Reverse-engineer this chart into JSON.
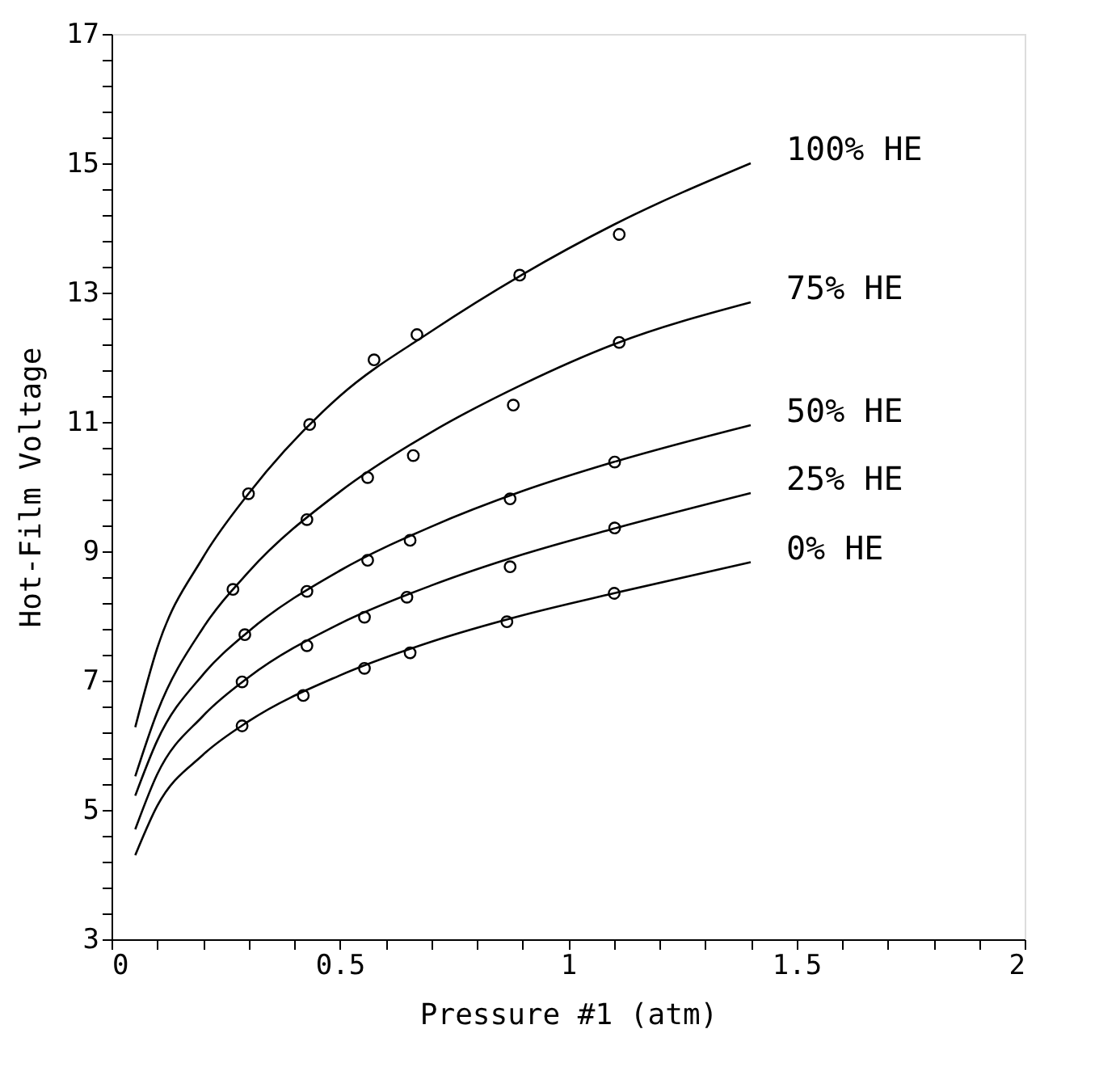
{
  "chart_data": {
    "type": "line",
    "xlabel": "Pressure #1 (atm)",
    "ylabel": "Hot-Film Voltage",
    "xlim": [
      0,
      2
    ],
    "ylim": [
      3,
      17
    ],
    "xticks": [
      0,
      {
        "value": 0.1,
        "label": null
      },
      {
        "value": 0.2,
        "label": null
      },
      {
        "value": 0.3,
        "label": null
      },
      {
        "value": 0.4,
        "label": null
      },
      0.5,
      {
        "value": 0.6,
        "label": null
      },
      {
        "value": 0.7,
        "label": null
      },
      {
        "value": 0.8,
        "label": null
      },
      {
        "value": 0.9,
        "label": null
      },
      1,
      {
        "value": 1.1,
        "label": null
      },
      {
        "value": 1.2,
        "label": null
      },
      {
        "value": 1.3,
        "label": null
      },
      {
        "value": 1.4,
        "label": null
      },
      1.5,
      {
        "value": 1.6,
        "label": null
      },
      {
        "value": 1.7,
        "label": null
      },
      {
        "value": 1.8,
        "label": null
      },
      {
        "value": 1.9,
        "label": null
      },
      2
    ],
    "yticks": [
      3,
      {
        "value": 3.4,
        "label": null
      },
      {
        "value": 3.8,
        "label": null
      },
      {
        "value": 4.2,
        "label": null
      },
      {
        "value": 4.6,
        "label": null
      },
      5,
      {
        "value": 5.4,
        "label": null
      },
      {
        "value": 5.8,
        "label": null
      },
      {
        "value": 6.2,
        "label": null
      },
      {
        "value": 6.6,
        "label": null
      },
      7,
      {
        "value": 7.4,
        "label": null
      },
      {
        "value": 7.8,
        "label": null
      },
      {
        "value": 8.2,
        "label": null
      },
      {
        "value": 8.6,
        "label": null
      },
      9,
      {
        "value": 9.4,
        "label": null
      },
      {
        "value": 9.8,
        "label": null
      },
      {
        "value": 10.2,
        "label": null
      },
      {
        "value": 10.6,
        "label": null
      },
      11,
      {
        "value": 11.4,
        "label": null
      },
      {
        "value": 11.8,
        "label": null
      },
      {
        "value": 12.2,
        "label": null
      },
      {
        "value": 12.6,
        "label": null
      },
      13,
      {
        "value": 13.4,
        "label": null
      },
      {
        "value": 13.8,
        "label": null
      },
      {
        "value": 14.2,
        "label": null
      },
      {
        "value": 14.6,
        "label": null
      },
      15,
      {
        "value": 15.4,
        "label": null
      },
      {
        "value": 15.8,
        "label": null
      },
      {
        "value": 16.2,
        "label": null
      },
      {
        "value": 16.6,
        "label": null
      },
      17
    ],
    "grid": false,
    "line_style": "solid",
    "series": [
      {
        "name": "100% HE",
        "color": "#000000",
        "x": [
          0.052,
          0.1,
          0.2,
          0.3,
          0.5,
          0.7,
          0.9,
          1.1,
          1.4
        ],
        "values": [
          6.28,
          7.5,
          8.9,
          9.89,
          11.4,
          12.4,
          13.28,
          14.05,
          15.0
        ]
      },
      {
        "name": "75% HE",
        "color": "#000000",
        "x": [
          0.052,
          0.1,
          0.2,
          0.3,
          0.5,
          0.7,
          0.9,
          1.1,
          1.4
        ],
        "values": [
          5.52,
          6.51,
          7.81,
          8.68,
          9.92,
          10.84,
          11.58,
          12.2,
          12.85
        ]
      },
      {
        "name": "50% HE",
        "color": "#000000",
        "x": [
          0.052,
          0.1,
          0.2,
          0.3,
          0.5,
          0.7,
          0.9,
          1.1,
          1.4
        ],
        "values": [
          5.22,
          6.07,
          7.09,
          7.76,
          8.7,
          9.38,
          9.93,
          10.38,
          10.95
        ]
      },
      {
        "name": "25% HE",
        "color": "#000000",
        "x": [
          0.052,
          0.1,
          0.2,
          0.3,
          0.5,
          0.7,
          0.9,
          1.1,
          1.4
        ],
        "values": [
          4.7,
          5.55,
          6.45,
          7.05,
          7.88,
          8.47,
          8.95,
          9.35,
          9.9
        ]
      },
      {
        "name": "0% HE",
        "color": "#000000",
        "x": [
          0.052,
          0.1,
          0.2,
          0.3,
          0.5,
          0.7,
          0.9,
          1.1,
          1.4
        ],
        "values": [
          4.3,
          5.06,
          5.85,
          6.37,
          7.08,
          7.6,
          8.01,
          8.35,
          8.83
        ]
      },
      {
        "type": "scatter",
        "marker": "circle",
        "color": "#000000",
        "x": [
          0.3,
          0.434,
          0.575,
          0.669,
          0.894,
          1.112
        ],
        "values": [
          9.89,
          10.96,
          11.96,
          12.35,
          13.27,
          13.9
        ]
      },
      {
        "type": "scatter",
        "marker": "circle",
        "color": "#000000",
        "x": [
          0.266,
          0.428,
          0.561,
          0.661,
          0.88,
          1.112
        ],
        "values": [
          8.41,
          9.49,
          10.14,
          10.48,
          11.26,
          12.23
        ]
      },
      {
        "type": "scatter",
        "marker": "circle",
        "color": "#000000",
        "x": [
          0.292,
          0.428,
          0.561,
          0.654,
          0.873,
          1.102
        ],
        "values": [
          7.71,
          8.38,
          8.86,
          9.17,
          9.81,
          10.38
        ]
      },
      {
        "type": "scatter",
        "marker": "circle",
        "color": "#000000",
        "x": [
          0.286,
          0.428,
          0.554,
          0.647,
          0.873,
          1.102
        ],
        "values": [
          6.98,
          7.54,
          7.98,
          8.29,
          8.76,
          9.36
        ]
      },
      {
        "type": "scatter",
        "marker": "circle",
        "color": "#000000",
        "x": [
          0.286,
          0.42,
          0.554,
          0.654,
          0.866,
          1.101
        ],
        "values": [
          6.3,
          6.77,
          7.19,
          7.43,
          7.91,
          8.35
        ]
      }
    ]
  }
}
